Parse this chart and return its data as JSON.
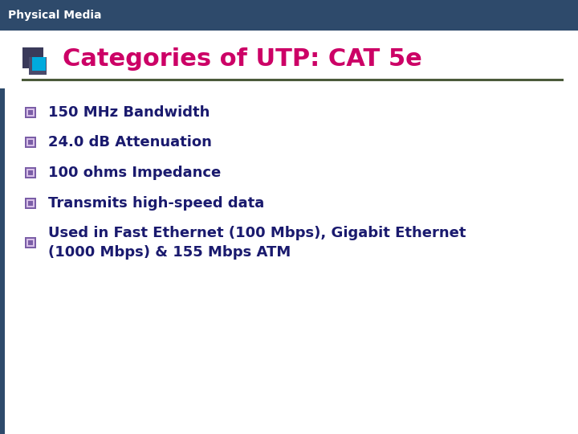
{
  "header_text": "Physical Media",
  "header_bg_color": "#2E4A6B",
  "header_text_color": "#FFFFFF",
  "title_text": "Categories of UTP: CAT 5e",
  "title_color": "#CC0066",
  "title_underline_color": "#4A5A3A",
  "body_bg_color": "#FFFFFF",
  "bullet_items": [
    "150 MHz Bandwidth",
    "24.0 dB Attenuation",
    "100 ohms Impedance",
    "Transmits high-speed data",
    "Used in Fast Ethernet (100 Mbps), Gigabit Ethernet\n(1000 Mbps) & 155 Mbps ATM"
  ],
  "bullet_text_color": "#1A1A6E",
  "icon_dark_square": "#3A3A5A",
  "icon_dark2": "#4A4A6A",
  "icon_cyan_square": "#00AADD",
  "bullet_outer_color": "#7B5EA7",
  "bullet_mid_color": "#D8C0E8",
  "bullet_inner_color": "#7B5EA7",
  "left_bar_color": "#2E4A6B",
  "underline_color": "#4A5A3A"
}
